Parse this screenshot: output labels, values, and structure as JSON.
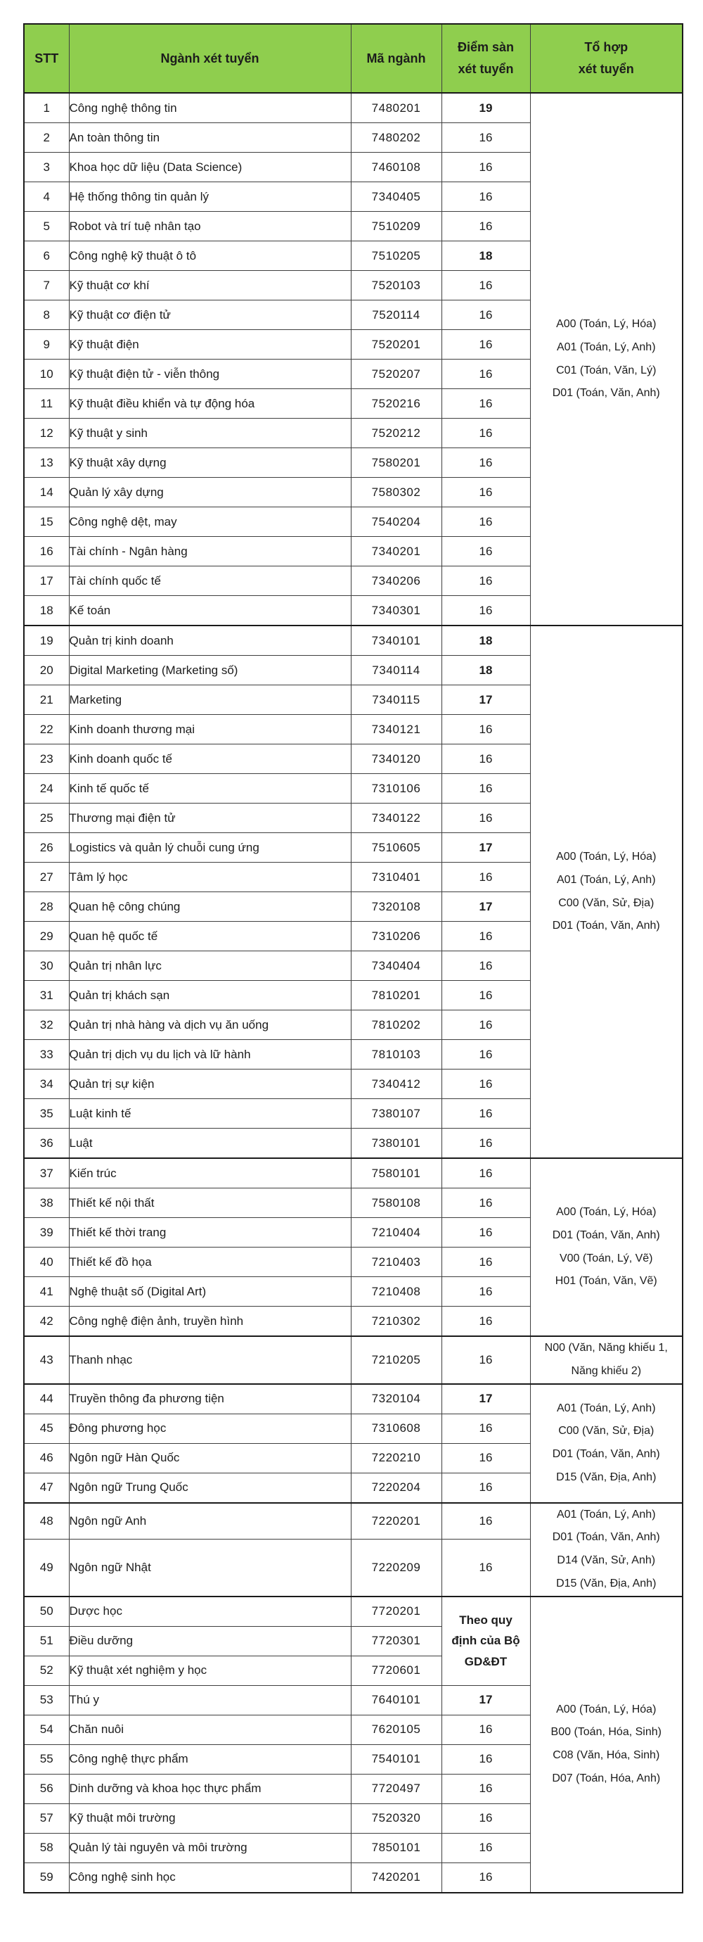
{
  "colors": {
    "header_bg": "#8fce4e",
    "grid_line": "#3f3f3f",
    "outer_border": "#1a1a1a",
    "text": "#1c1c1c"
  },
  "table": {
    "headers": {
      "stt": "STT",
      "nganh": "Ngành xét tuyển",
      "ma": "Mã ngành",
      "diem": "Điểm sàn\nxét tuyển",
      "tohop": "Tổ hợp\nxét tuyển"
    },
    "rows": [
      {
        "n": 1,
        "name": "Công nghệ thông tin",
        "code": "7480201",
        "score": "19",
        "bold": true
      },
      {
        "n": 2,
        "name": "An toàn thông tin",
        "code": "7480202",
        "score": "16",
        "bold": false
      },
      {
        "n": 3,
        "name": "Khoa học dữ liệu (Data Science)",
        "code": "7460108",
        "score": "16",
        "bold": false
      },
      {
        "n": 4,
        "name": "Hệ thống thông tin quản lý",
        "code": "7340405",
        "score": "16",
        "bold": false
      },
      {
        "n": 5,
        "name": "Robot và trí tuệ nhân tạo",
        "code": "7510209",
        "score": "16",
        "bold": false
      },
      {
        "n": 6,
        "name": "Công nghệ kỹ thuật ô tô",
        "code": "7510205",
        "score": "18",
        "bold": true
      },
      {
        "n": 7,
        "name": "Kỹ thuật cơ khí",
        "code": "7520103",
        "score": "16",
        "bold": false
      },
      {
        "n": 8,
        "name": "Kỹ thuật cơ điện tử",
        "code": "7520114",
        "score": "16",
        "bold": false
      },
      {
        "n": 9,
        "name": "Kỹ thuật điện",
        "code": "7520201",
        "score": "16",
        "bold": false
      },
      {
        "n": 10,
        "name": "Kỹ thuật điện tử - viễn thông",
        "code": "7520207",
        "score": "16",
        "bold": false
      },
      {
        "n": 11,
        "name": "Kỹ thuật điều khiển và tự động hóa",
        "code": "7520216",
        "score": "16",
        "bold": false
      },
      {
        "n": 12,
        "name": "Kỹ thuật y sinh",
        "code": "7520212",
        "score": "16",
        "bold": false
      },
      {
        "n": 13,
        "name": "Kỹ thuật xây dựng",
        "code": "7580201",
        "score": "16",
        "bold": false
      },
      {
        "n": 14,
        "name": "Quản lý xây dựng",
        "code": "7580302",
        "score": "16",
        "bold": false
      },
      {
        "n": 15,
        "name": "Công nghệ dệt, may",
        "code": "7540204",
        "score": "16",
        "bold": false
      },
      {
        "n": 16,
        "name": "Tài chính - Ngân hàng",
        "code": "7340201",
        "score": "16",
        "bold": false
      },
      {
        "n": 17,
        "name": "Tài chính quốc tế",
        "code": "7340206",
        "score": "16",
        "bold": false
      },
      {
        "n": 18,
        "name": "Kế toán",
        "code": "7340301",
        "score": "16",
        "bold": false
      },
      {
        "n": 19,
        "name": "Quản trị kinh doanh",
        "code": "7340101",
        "score": "18",
        "bold": true
      },
      {
        "n": 20,
        "name": "Digital Marketing (Marketing số)",
        "code": "7340114",
        "score": "18",
        "bold": true
      },
      {
        "n": 21,
        "name": "Marketing",
        "code": "7340115",
        "score": "17",
        "bold": true
      },
      {
        "n": 22,
        "name": "Kinh doanh thương mại",
        "code": "7340121",
        "score": "16",
        "bold": false
      },
      {
        "n": 23,
        "name": "Kinh doanh quốc tế",
        "code": "7340120",
        "score": "16",
        "bold": false
      },
      {
        "n": 24,
        "name": "Kinh tế quốc tế",
        "code": "7310106",
        "score": "16",
        "bold": false
      },
      {
        "n": 25,
        "name": "Thương mại điện tử",
        "code": "7340122",
        "score": "16",
        "bold": false
      },
      {
        "n": 26,
        "name": "Logistics và quản lý chuỗi cung ứng",
        "code": "7510605",
        "score": "17",
        "bold": true
      },
      {
        "n": 27,
        "name": "Tâm lý học",
        "code": "7310401",
        "score": "16",
        "bold": false
      },
      {
        "n": 28,
        "name": "Quan hệ công chúng",
        "code": "7320108",
        "score": "17",
        "bold": true
      },
      {
        "n": 29,
        "name": "Quan hệ quốc tế",
        "code": "7310206",
        "score": "16",
        "bold": false
      },
      {
        "n": 30,
        "name": "Quản trị nhân lực",
        "code": "7340404",
        "score": "16",
        "bold": false
      },
      {
        "n": 31,
        "name": "Quản trị khách sạn",
        "code": "7810201",
        "score": "16",
        "bold": false
      },
      {
        "n": 32,
        "name": "Quản trị nhà hàng và dịch vụ ăn uống",
        "code": "7810202",
        "score": "16",
        "bold": false
      },
      {
        "n": 33,
        "name": "Quản trị dịch vụ du lịch và lữ hành",
        "code": "7810103",
        "score": "16",
        "bold": false
      },
      {
        "n": 34,
        "name": "Quản trị sự kiện",
        "code": "7340412",
        "score": "16",
        "bold": false
      },
      {
        "n": 35,
        "name": "Luật kinh tế",
        "code": "7380107",
        "score": "16",
        "bold": false
      },
      {
        "n": 36,
        "name": "Luật",
        "code": "7380101",
        "score": "16",
        "bold": false
      },
      {
        "n": 37,
        "name": "Kiến trúc",
        "code": "7580101",
        "score": "16",
        "bold": false
      },
      {
        "n": 38,
        "name": "Thiết kế nội thất",
        "code": "7580108",
        "score": "16",
        "bold": false
      },
      {
        "n": 39,
        "name": "Thiết kế thời trang",
        "code": "7210404",
        "score": "16",
        "bold": false
      },
      {
        "n": 40,
        "name": "Thiết kế đồ họa",
        "code": "7210403",
        "score": "16",
        "bold": false
      },
      {
        "n": 41,
        "name": "Nghệ thuật số (Digital Art)",
        "code": "7210408",
        "score": "16",
        "bold": false
      },
      {
        "n": 42,
        "name": "Công nghệ điện ảnh, truyền hình",
        "code": "7210302",
        "score": "16",
        "bold": false
      },
      {
        "n": 43,
        "name": "Thanh nhạc",
        "code": "7210205",
        "score": "16",
        "bold": false,
        "h": 64
      },
      {
        "n": 44,
        "name": "Truyền thông đa phương tiện",
        "code": "7320104",
        "score": "17",
        "bold": true
      },
      {
        "n": 45,
        "name": "Đông phương học",
        "code": "7310608",
        "score": "16",
        "bold": false
      },
      {
        "n": 46,
        "name": "Ngôn ngữ Hàn Quốc",
        "code": "7220210",
        "score": "16",
        "bold": false
      },
      {
        "n": 47,
        "name": "Ngôn ngữ Trung Quốc",
        "code": "7220204",
        "score": "16",
        "bold": false
      },
      {
        "n": 48,
        "name": "Ngôn ngữ Anh",
        "code": "7220201",
        "score": "16",
        "bold": false
      },
      {
        "n": 49,
        "name": "Ngôn ngữ Nhật",
        "code": "7220209",
        "score": "16",
        "bold": false,
        "h": 66
      },
      {
        "n": 50,
        "name": "Dược học",
        "code": "7720201",
        "score": "",
        "bold": false
      },
      {
        "n": 51,
        "name": "Điều dưỡng",
        "code": "7720301",
        "score": "",
        "bold": false
      },
      {
        "n": 52,
        "name": "Kỹ thuật xét nghiệm y học",
        "code": "7720601",
        "score": "",
        "bold": false
      },
      {
        "n": 53,
        "name": "Thú y",
        "code": "7640101",
        "score": "17",
        "bold": true
      },
      {
        "n": 54,
        "name": "Chăn nuôi",
        "code": "7620105",
        "score": "16",
        "bold": false
      },
      {
        "n": 55,
        "name": "Công nghệ thực phẩm",
        "code": "7540101",
        "score": "16",
        "bold": false
      },
      {
        "n": 56,
        "name": "Dinh dưỡng và khoa học thực phẩm",
        "code": "7720497",
        "score": "16",
        "bold": false
      },
      {
        "n": 57,
        "name": "Kỹ thuật môi trường",
        "code": "7520320",
        "score": "16",
        "bold": false
      },
      {
        "n": 58,
        "name": "Quản lý tài nguyên và môi trường",
        "code": "7850101",
        "score": "16",
        "bold": false
      },
      {
        "n": 59,
        "name": "Công nghệ sinh học",
        "code": "7420201",
        "score": "16",
        "bold": false
      }
    ],
    "score_merge": {
      "start": 50,
      "span": 3,
      "text": "Theo quy\nđịnh của Bộ\nGD&ĐT"
    },
    "groups": [
      {
        "start": 1,
        "end": 18,
        "combos": [
          "A00 (Toán, Lý, Hóa)",
          "A01 (Toán, Lý, Anh)",
          "C01 (Toán, Văn, Lý)",
          "D01 (Toán, Văn, Anh)"
        ]
      },
      {
        "start": 19,
        "end": 36,
        "combos": [
          "A00 (Toán, Lý, Hóa)",
          "A01 (Toán, Lý, Anh)",
          "C00 (Văn, Sử, Địa)",
          "D01 (Toán, Văn, Anh)"
        ]
      },
      {
        "start": 37,
        "end": 42,
        "combos": [
          "A00 (Toán, Lý, Hóa)",
          "D01 (Toán, Văn, Anh)",
          "V00 (Toán, Lý, Vẽ)",
          "H01 (Toán, Văn, Vẽ)"
        ]
      },
      {
        "start": 43,
        "end": 43,
        "combos": [
          "N00 (Văn, Năng khiếu 1, Năng khiếu 2)"
        ]
      },
      {
        "start": 44,
        "end": 47,
        "combos": [
          "A01 (Toán, Lý, Anh)",
          "C00 (Văn, Sử, Địa)",
          "D01 (Toán, Văn, Anh)",
          "D15 (Văn, Địa, Anh)"
        ]
      },
      {
        "start": 48,
        "end": 49,
        "combos": [
          "A01 (Toán, Lý, Anh)",
          "D01 (Toán, Văn, Anh)",
          "D14 (Văn, Sử, Anh)",
          "D15 (Văn, Địa, Anh)"
        ]
      },
      {
        "start": 50,
        "end": 59,
        "combos": [
          "A00 (Toán, Lý, Hóa)",
          "B00 (Toán, Hóa, Sinh)",
          "C08 (Văn, Hóa, Sinh)",
          "D07 (Toán, Hóa, Anh)"
        ]
      }
    ]
  }
}
